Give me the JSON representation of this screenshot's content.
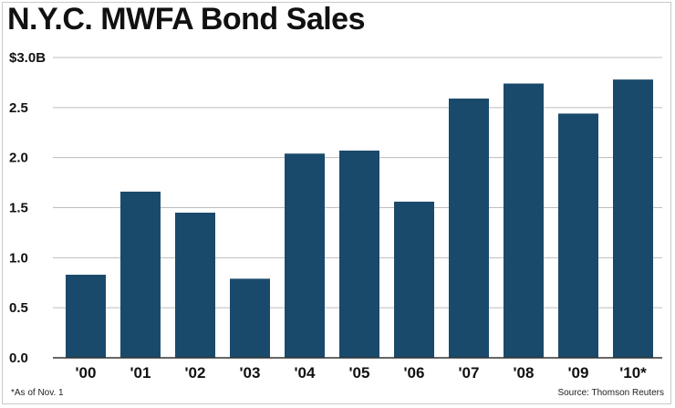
{
  "title": "N.Y.C. MWFA Bond Sales",
  "footnote": "*As of Nov. 1",
  "source": "Source: Thomson Reuters",
  "colors": {
    "bar": "#1a4a6b",
    "grid": "#bdbdbd",
    "axis": "#333333"
  },
  "chart_data": {
    "type": "bar",
    "title": "N.Y.C. MWFA Bond Sales",
    "xlabel": "",
    "ylabel": "",
    "categories": [
      "'00",
      "'01",
      "'02",
      "'03",
      "'04",
      "'05",
      "'06",
      "'07",
      "'08",
      "'09",
      "'10*"
    ],
    "values": [
      0.83,
      1.66,
      1.45,
      0.79,
      2.04,
      2.07,
      1.56,
      2.59,
      2.74,
      2.44,
      2.78
    ],
    "ylim": [
      0,
      3.0
    ],
    "yticks": [
      0,
      0.5,
      1.0,
      1.5,
      2.0,
      2.5,
      3.0
    ],
    "ytick_labels": [
      "0.0",
      "0.5",
      "1.0",
      "1.5",
      "2.0",
      "2.5",
      "$3.0B"
    ],
    "grid": true
  }
}
